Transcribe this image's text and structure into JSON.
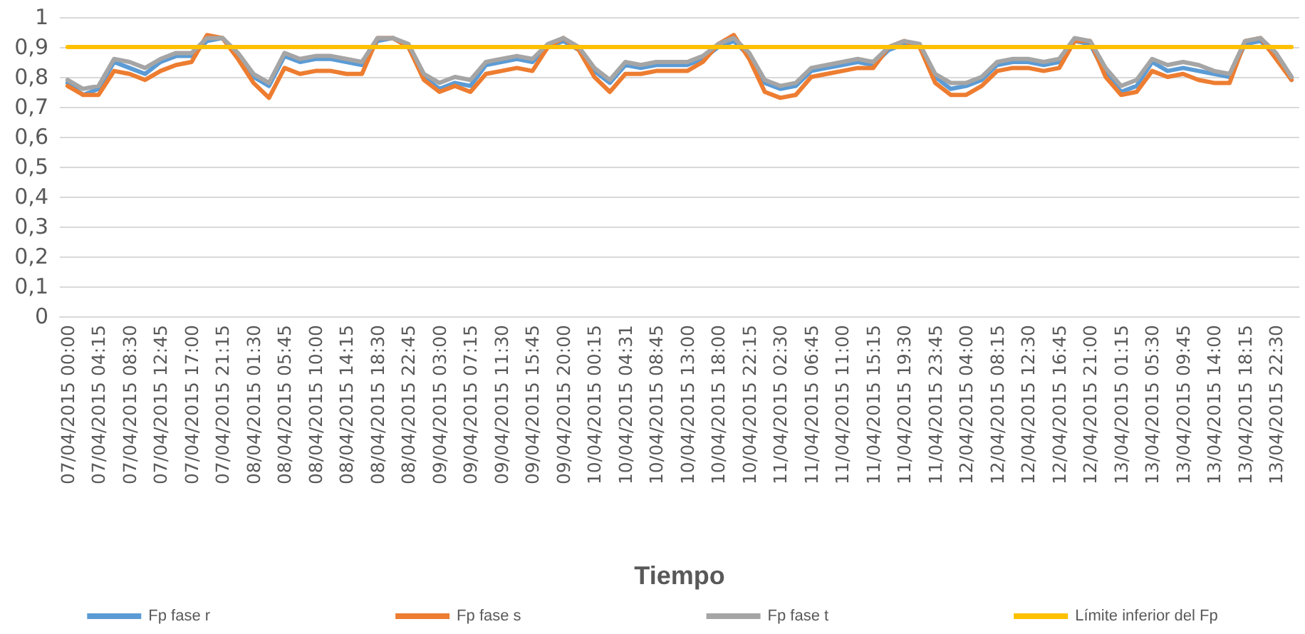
{
  "chart_data": {
    "type": "line",
    "xlabel": "Tiempo",
    "categories": [
      "07/04/2015 00:00",
      null,
      "07/04/2015 04:15",
      null,
      "07/04/2015 08:30",
      null,
      "07/04/2015 12:45",
      null,
      "07/04/2015 17:00",
      null,
      "07/04/2015 21:15",
      null,
      "08/04/2015 01:30",
      null,
      "08/04/2015 05:45",
      null,
      "08/04/2015 10:00",
      null,
      "08/04/2015 14:15",
      null,
      "08/04/2015 18:30",
      null,
      "08/04/2015 22:45",
      null,
      "09/04/2015 03:00",
      null,
      "09/04/2015 07:15",
      null,
      "09/04/2015 11:30",
      null,
      "09/04/2015 15:45",
      null,
      "09/04/2015 20:00",
      null,
      "10/04/2015 00:15",
      null,
      "10/04/2015 04:31",
      null,
      "10/04/2015 08:45",
      null,
      "10/04/2015 13:00",
      null,
      "10/04/2015 18:00",
      null,
      "10/04/2015 22:15",
      null,
      "11/04/2015 02:30",
      null,
      "11/04/2015 06:45",
      null,
      "11/04/2015 11:00",
      null,
      "11/04/2015 15:15",
      null,
      "11/04/2015 19:30",
      null,
      "11/04/2015 23:45",
      null,
      "12/04/2015 04:00",
      null,
      "12/04/2015 08:15",
      null,
      "12/04/2015 12:30",
      null,
      "12/04/2015 16:45",
      null,
      "12/04/2015 21:00",
      null,
      "13/04/2015 01:15",
      null,
      "13/04/2015 05:30",
      null,
      "13/04/2015 09:45",
      null,
      "13/04/2015 14:00",
      null,
      "13/04/2015 18:15",
      null,
      "13/04/2015 22:30",
      null
    ],
    "series": [
      {
        "name": "Fp fase r",
        "color": "#5b9bd5",
        "values": [
          0.78,
          0.74,
          0.76,
          0.85,
          0.83,
          0.81,
          0.85,
          0.87,
          0.87,
          0.92,
          0.93,
          0.87,
          0.8,
          0.77,
          0.87,
          0.85,
          0.86,
          0.86,
          0.85,
          0.84,
          0.92,
          0.93,
          0.9,
          0.8,
          0.76,
          0.78,
          0.77,
          0.84,
          0.85,
          0.86,
          0.85,
          0.9,
          0.92,
          0.89,
          0.82,
          0.78,
          0.84,
          0.83,
          0.84,
          0.84,
          0.84,
          0.86,
          0.9,
          0.92,
          0.87,
          0.78,
          0.76,
          0.77,
          0.82,
          0.83,
          0.84,
          0.85,
          0.84,
          0.89,
          0.91,
          0.9,
          0.8,
          0.76,
          0.77,
          0.79,
          0.84,
          0.85,
          0.85,
          0.84,
          0.85,
          0.92,
          0.91,
          0.81,
          0.75,
          0.77,
          0.85,
          0.82,
          0.83,
          0.82,
          0.81,
          0.8,
          0.91,
          0.92,
          0.87,
          0.79
        ]
      },
      {
        "name": "Fp fase s",
        "color": "#ed7d31",
        "values": [
          0.77,
          0.74,
          0.74,
          0.82,
          0.81,
          0.79,
          0.82,
          0.84,
          0.85,
          0.94,
          0.93,
          0.86,
          0.78,
          0.73,
          0.83,
          0.81,
          0.82,
          0.82,
          0.81,
          0.81,
          0.93,
          0.93,
          0.9,
          0.79,
          0.75,
          0.77,
          0.75,
          0.81,
          0.82,
          0.83,
          0.82,
          0.9,
          0.93,
          0.89,
          0.8,
          0.75,
          0.81,
          0.81,
          0.82,
          0.82,
          0.82,
          0.85,
          0.91,
          0.94,
          0.86,
          0.75,
          0.73,
          0.74,
          0.8,
          0.81,
          0.82,
          0.83,
          0.83,
          0.9,
          0.92,
          0.9,
          0.78,
          0.74,
          0.74,
          0.77,
          0.82,
          0.83,
          0.83,
          0.82,
          0.83,
          0.92,
          0.92,
          0.8,
          0.74,
          0.75,
          0.82,
          0.8,
          0.81,
          0.79,
          0.78,
          0.78,
          0.92,
          0.93,
          0.86,
          0.79
        ]
      },
      {
        "name": "Fp fase t",
        "color": "#a5a5a5",
        "values": [
          0.79,
          0.76,
          0.77,
          0.86,
          0.85,
          0.83,
          0.86,
          0.88,
          0.88,
          0.93,
          0.93,
          0.88,
          0.81,
          0.78,
          0.88,
          0.86,
          0.87,
          0.87,
          0.86,
          0.85,
          0.93,
          0.93,
          0.91,
          0.81,
          0.78,
          0.8,
          0.79,
          0.85,
          0.86,
          0.87,
          0.86,
          0.91,
          0.93,
          0.9,
          0.83,
          0.79,
          0.85,
          0.84,
          0.85,
          0.85,
          0.85,
          0.87,
          0.91,
          0.93,
          0.88,
          0.79,
          0.77,
          0.78,
          0.83,
          0.84,
          0.85,
          0.86,
          0.85,
          0.9,
          0.92,
          0.91,
          0.81,
          0.78,
          0.78,
          0.8,
          0.85,
          0.86,
          0.86,
          0.85,
          0.86,
          0.93,
          0.92,
          0.83,
          0.77,
          0.79,
          0.86,
          0.84,
          0.85,
          0.84,
          0.82,
          0.81,
          0.92,
          0.93,
          0.88,
          0.8
        ]
      },
      {
        "name": "Límite inferior del Fp",
        "color": "#ffc000",
        "values": [
          0.9,
          0.9,
          0.9,
          0.9,
          0.9,
          0.9,
          0.9,
          0.9,
          0.9,
          0.9,
          0.9,
          0.9,
          0.9,
          0.9,
          0.9,
          0.9,
          0.9,
          0.9,
          0.9,
          0.9,
          0.9,
          0.9,
          0.9,
          0.9,
          0.9,
          0.9,
          0.9,
          0.9,
          0.9,
          0.9,
          0.9,
          0.9,
          0.9,
          0.9,
          0.9,
          0.9,
          0.9,
          0.9,
          0.9,
          0.9,
          0.9,
          0.9,
          0.9,
          0.9,
          0.9,
          0.9,
          0.9,
          0.9,
          0.9,
          0.9,
          0.9,
          0.9,
          0.9,
          0.9,
          0.9,
          0.9,
          0.9,
          0.9,
          0.9,
          0.9,
          0.9,
          0.9,
          0.9,
          0.9,
          0.9,
          0.9,
          0.9,
          0.9,
          0.9,
          0.9,
          0.9,
          0.9,
          0.9,
          0.9,
          0.9,
          0.9,
          0.9,
          0.9,
          0.9,
          0.9
        ]
      }
    ],
    "ylim": [
      0,
      1
    ],
    "yticks": [
      0,
      {
        "value": 0.1,
        "label": "0,1"
      },
      {
        "value": 0.2,
        "label": "0,2"
      },
      {
        "value": 0.3,
        "label": "0,3"
      },
      {
        "value": 0.4,
        "label": "0,4"
      },
      {
        "value": 0.5,
        "label": "0,5"
      },
      {
        "value": 0.6,
        "label": "0,6"
      },
      {
        "value": 0.7,
        "label": "0,7"
      },
      {
        "value": 0.8,
        "label": "0,8"
      },
      {
        "value": 0.9,
        "label": "0,9"
      },
      1
    ],
    "grid": "y",
    "legend": "bottom",
    "marker": "none",
    "line_style": "solid"
  }
}
